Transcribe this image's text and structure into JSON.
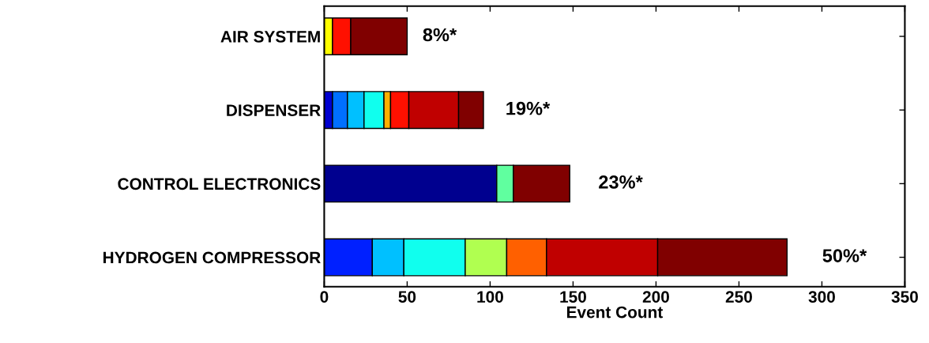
{
  "chart_data": {
    "type": "bar",
    "orientation": "horizontal",
    "stacked": true,
    "categories": [
      "AIR SYSTEM",
      "DISPENSER",
      "CONTROL ELECTRONICS",
      "HYDROGEN COMPRESSOR"
    ],
    "series": [
      {
        "color": "#00008f",
        "values": [
          null,
          null,
          104,
          null
        ]
      },
      {
        "color": "#0000d0",
        "values": [
          null,
          5,
          null,
          null
        ]
      },
      {
        "color": "#0020ff",
        "values": [
          null,
          null,
          null,
          29
        ]
      },
      {
        "color": "#0070ff",
        "values": [
          null,
          9,
          null,
          null
        ]
      },
      {
        "color": "#00c0ff",
        "values": [
          null,
          10,
          null,
          19
        ]
      },
      {
        "color": "#10ffee",
        "values": [
          null,
          12,
          null,
          37
        ]
      },
      {
        "color": "#60ff9f",
        "values": [
          null,
          null,
          10,
          null
        ]
      },
      {
        "color": "#b0ff50",
        "values": [
          null,
          null,
          null,
          25
        ]
      },
      {
        "color": "#ffff00",
        "values": [
          5,
          null,
          null,
          null
        ]
      },
      {
        "color": "#ffb000",
        "values": [
          null,
          4,
          null,
          null
        ]
      },
      {
        "color": "#ff6000",
        "values": [
          null,
          null,
          null,
          24
        ]
      },
      {
        "color": "#ff1000",
        "values": [
          11,
          11,
          null,
          null
        ]
      },
      {
        "color": "#c00000",
        "values": [
          null,
          30,
          null,
          67
        ]
      },
      {
        "color": "#800000",
        "values": [
          34,
          15,
          34,
          78
        ]
      }
    ],
    "xlabel": "Event Count",
    "xlim": [
      0,
      350
    ],
    "xticks": [
      0,
      50,
      100,
      150,
      200,
      250,
      300,
      350
    ],
    "annotations": [
      "8%*",
      "19%*",
      "23%*",
      "50%*"
    ],
    "grid": false,
    "legend": false
  }
}
